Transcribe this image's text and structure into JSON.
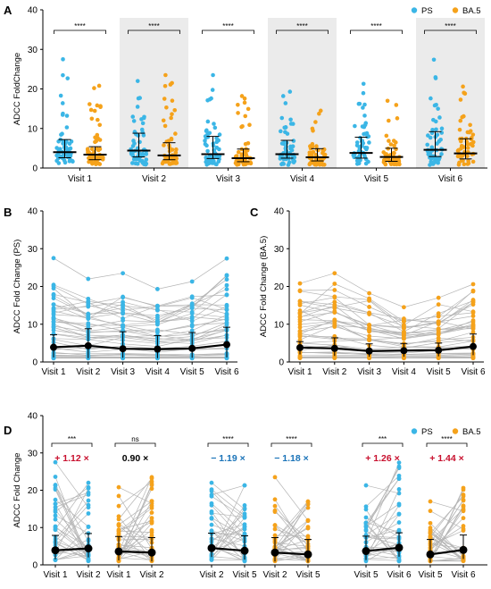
{
  "colors": {
    "ps": "#3bb6e6",
    "ba5": "#f5a21b",
    "mean": "#000000",
    "shade": "#ebebeb",
    "line": "#b5b5b5",
    "red": "#c8102e",
    "blue": "#1a73b8"
  },
  "chart_data": [
    {
      "panel": "A",
      "type": "scatter",
      "ylabel": "ADCC FoldChange",
      "ylim": [
        0,
        40
      ],
      "yticks": [
        "0",
        "10",
        "20",
        "30",
        "40"
      ],
      "categories": [
        "Visit 1",
        "Visit 2",
        "Visit 3",
        "Visit 4",
        "Visit 5",
        "Visit 6"
      ],
      "shaded_categories": [
        "Visit 2",
        "Visit 4",
        "Visit 6"
      ],
      "legend": {
        "position": "top-right",
        "entries": [
          "PS",
          "BA.5"
        ]
      },
      "significance": [
        "****",
        "****",
        "****",
        "****",
        "****",
        "****"
      ],
      "series": [
        {
          "name": "PS",
          "median": [
            4.0,
            4.4,
            3.5,
            3.5,
            3.8,
            4.6
          ],
          "q1": [
            2.6,
            2.8,
            2.4,
            2.5,
            2.5,
            2.9
          ],
          "q3": [
            7.2,
            8.8,
            8.0,
            7.0,
            7.8,
            9.2
          ],
          "max": [
            27.5,
            22.0,
            23.5,
            19.3,
            21.3,
            27.4
          ]
        },
        {
          "name": "BA.5",
          "median": [
            3.4,
            3.2,
            2.5,
            2.7,
            2.8,
            3.7
          ],
          "q1": [
            2.1,
            2.1,
            1.6,
            1.8,
            1.7,
            2.3
          ],
          "q3": [
            5.4,
            6.4,
            4.8,
            4.9,
            5.0,
            7.4
          ],
          "max": [
            20.8,
            23.5,
            18.2,
            14.5,
            17.0,
            20.6
          ]
        }
      ]
    },
    {
      "panel": "B",
      "type": "line",
      "ylabel": "ADCC Fold Change (PS)",
      "ylim": [
        0,
        40
      ],
      "yticks": [
        "0",
        "10",
        "20",
        "30",
        "40"
      ],
      "categories": [
        "Visit 1",
        "Visit 2",
        "Visit 3",
        "Visit 4",
        "Visit 5",
        "Visit 6"
      ],
      "series": [
        {
          "name": "PS",
          "mean": [
            3.9,
            4.3,
            3.5,
            3.4,
            3.6,
            4.6
          ],
          "sd_upper": [
            7.2,
            8.8,
            8.0,
            7.0,
            7.8,
            9.2
          ],
          "sd_lower": [
            1.2,
            1.0,
            1.1,
            1.0,
            1.1,
            1.2
          ],
          "max": [
            27.5,
            22.0,
            23.5,
            19.3,
            21.3,
            27.4
          ]
        }
      ]
    },
    {
      "panel": "C",
      "type": "line",
      "ylabel": "ADCC Fold Change (BA.5)",
      "ylim": [
        0,
        40
      ],
      "yticks": [
        "0",
        "10",
        "20",
        "30",
        "40"
      ],
      "categories": [
        "Visit 1",
        "Visit 2",
        "Visit 3",
        "Visit 4",
        "Visit 5",
        "Visit 6"
      ],
      "series": [
        {
          "name": "BA.5",
          "mean": [
            3.8,
            3.6,
            2.9,
            3.0,
            3.1,
            4.1
          ],
          "sd_upper": [
            5.4,
            6.4,
            4.8,
            4.9,
            5.0,
            7.4
          ],
          "sd_lower": [
            2.0,
            1.6,
            1.4,
            1.4,
            1.5,
            1.8
          ],
          "max": [
            20.8,
            23.5,
            18.2,
            14.5,
            17.0,
            20.6
          ]
        }
      ]
    },
    {
      "panel": "D",
      "type": "line",
      "ylabel": "ADCC Fold Change",
      "ylim": [
        0,
        40
      ],
      "yticks": [
        "0",
        "10",
        "20",
        "30",
        "40"
      ],
      "legend": {
        "position": "top-right",
        "entries": [
          "PS",
          "BA.5"
        ]
      },
      "comparisons": [
        {
          "series": "PS",
          "x": [
            "Visit 1",
            "Visit 2"
          ],
          "mean": [
            3.9,
            4.4
          ],
          "sig": "***",
          "fold": "+ 1.12 ×",
          "fold_color": "red",
          "max": [
            27.5,
            22.0
          ]
        },
        {
          "series": "BA.5",
          "x": [
            "Visit 1",
            "Visit 2"
          ],
          "mean": [
            3.6,
            3.3
          ],
          "sig": "ns",
          "fold": "0.90 ×",
          "fold_color": "black",
          "max": [
            20.8,
            23.5
          ]
        },
        {
          "series": "PS",
          "x": [
            "Visit 2",
            "Visit 5"
          ],
          "mean": [
            4.5,
            3.8
          ],
          "sig": "****",
          "fold": "− 1.19 ×",
          "fold_color": "blue",
          "max": [
            22.0,
            21.3
          ]
        },
        {
          "series": "BA.5",
          "x": [
            "Visit 2",
            "Visit 5"
          ],
          "mean": [
            3.3,
            2.8
          ],
          "sig": "****",
          "fold": "− 1.18 ×",
          "fold_color": "blue",
          "max": [
            23.5,
            17.0
          ]
        },
        {
          "series": "PS",
          "x": [
            "Visit 5",
            "Visit 6"
          ],
          "mean": [
            3.7,
            4.6
          ],
          "sig": "***",
          "fold": "+ 1.26 ×",
          "fold_color": "red",
          "max": [
            21.3,
            27.4
          ]
        },
        {
          "series": "BA.5",
          "x": [
            "Visit 5",
            "Visit 6"
          ],
          "mean": [
            2.8,
            4.0
          ],
          "sig": "****",
          "fold": "+ 1.44 ×",
          "fold_color": "red",
          "max": [
            17.0,
            20.6
          ]
        }
      ]
    }
  ]
}
